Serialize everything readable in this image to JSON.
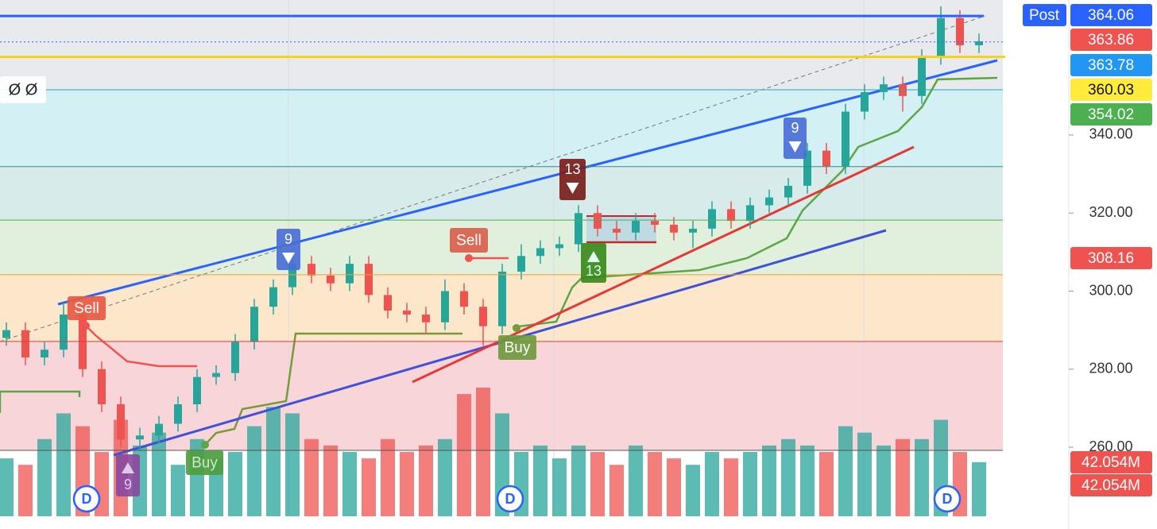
{
  "chart_data": {
    "type": "candlestick",
    "open": [
      288,
      290,
      283,
      285,
      294,
      280,
      271,
      262,
      263,
      266,
      271,
      278,
      279,
      287,
      296,
      301,
      307,
      304,
      302,
      307,
      299,
      295,
      294,
      292,
      300,
      296,
      291,
      305,
      309,
      311,
      312,
      320,
      316,
      315,
      318,
      317,
      315,
      316,
      321,
      318,
      322,
      324,
      327,
      336,
      332,
      346,
      351,
      353,
      350,
      360,
      370,
      363
    ],
    "high": [
      292,
      292,
      287,
      297,
      296,
      282,
      273,
      265,
      268,
      273,
      280,
      281,
      289,
      298,
      303,
      310,
      309,
      306,
      309,
      309,
      301,
      297,
      296,
      303,
      302,
      298,
      307,
      312,
      313,
      314,
      322,
      322,
      318,
      320,
      320,
      319,
      318,
      323,
      323,
      324,
      326,
      329,
      338,
      338,
      348,
      353,
      355,
      355,
      362,
      373,
      372,
      366
    ],
    "low": [
      286,
      281,
      281,
      283,
      278,
      269,
      260,
      259,
      261,
      264,
      269,
      276,
      277,
      285,
      294,
      299,
      302,
      300,
      300,
      297,
      293,
      292,
      289,
      290,
      294,
      286,
      289,
      303,
      307,
      309,
      310,
      314,
      313,
      313,
      315,
      313,
      311,
      314,
      316,
      316,
      320,
      322,
      325,
      330,
      330,
      344,
      349,
      346,
      348,
      358,
      361,
      361
    ],
    "close": [
      290,
      283,
      285,
      294,
      280,
      271,
      262,
      263,
      266,
      271,
      278,
      279,
      287,
      296,
      301,
      307,
      304,
      302,
      307,
      299,
      295,
      294,
      292,
      300,
      296,
      291,
      305,
      309,
      311,
      312,
      320,
      316,
      315,
      318,
      317,
      315,
      316,
      321,
      318,
      322,
      324,
      327,
      336,
      332,
      346,
      351,
      353,
      350,
      360,
      370,
      363,
      364
    ],
    "volume": [
      45,
      40,
      60,
      80,
      70,
      50,
      75,
      55,
      65,
      40,
      60,
      45,
      50,
      70,
      85,
      80,
      60,
      55,
      50,
      45,
      60,
      50,
      55,
      60,
      95,
      100,
      80,
      50,
      55,
      45,
      55,
      50,
      40,
      55,
      50,
      45,
      40,
      50,
      45,
      50,
      55,
      60,
      55,
      50,
      70,
      65,
      55,
      60,
      60,
      75,
      50,
      42.054
    ],
    "up_color": "#26a69a",
    "down_color": "#ef5350",
    "ylim": [
      242.3,
      374.6
    ],
    "yticks": [
      {
        "value": 260,
        "label": "260.00"
      },
      {
        "value": 280,
        "label": "280.00"
      },
      {
        "value": 300,
        "label": "300.00"
      },
      {
        "value": 320,
        "label": "320.00"
      },
      {
        "value": 340,
        "label": "340.00"
      }
    ],
    "volume_lim": [
      0,
      100
    ],
    "fib_levels": [
      351.6,
      331.9,
      318.2,
      304.2,
      287.1,
      259.2
    ],
    "fib_band_colors": [
      "#d3f0f5",
      "#d6ebea",
      "#e0f0dc",
      "#fde7cb",
      "#f8d5d9"
    ],
    "fib_line_colors": [
      "#26a6b5",
      "#2f8f83",
      "#4caf50",
      "#f0a030",
      "#e53935"
    ],
    "resistance": 370.5,
    "post_label": "Post",
    "price_tags": [
      364.06,
      363.86,
      363.78,
      360.03,
      354.02,
      308.16
    ],
    "price_tag_colors": [
      "#2962ff",
      "#ef5350",
      "#2196f3",
      "#ffeb3b",
      "#4caf50",
      "#ef5350"
    ],
    "volume_tags": [
      {
        "value": 42.054,
        "label": "42.054M"
      },
      {
        "value": 42.054,
        "label": "42.054M"
      }
    ],
    "annotations": [
      "Sell",
      "Sell",
      "Buy",
      "Buy",
      "9",
      "9",
      "9",
      "13",
      "13",
      "D",
      "D",
      "D",
      "Ø Ø"
    ]
  }
}
